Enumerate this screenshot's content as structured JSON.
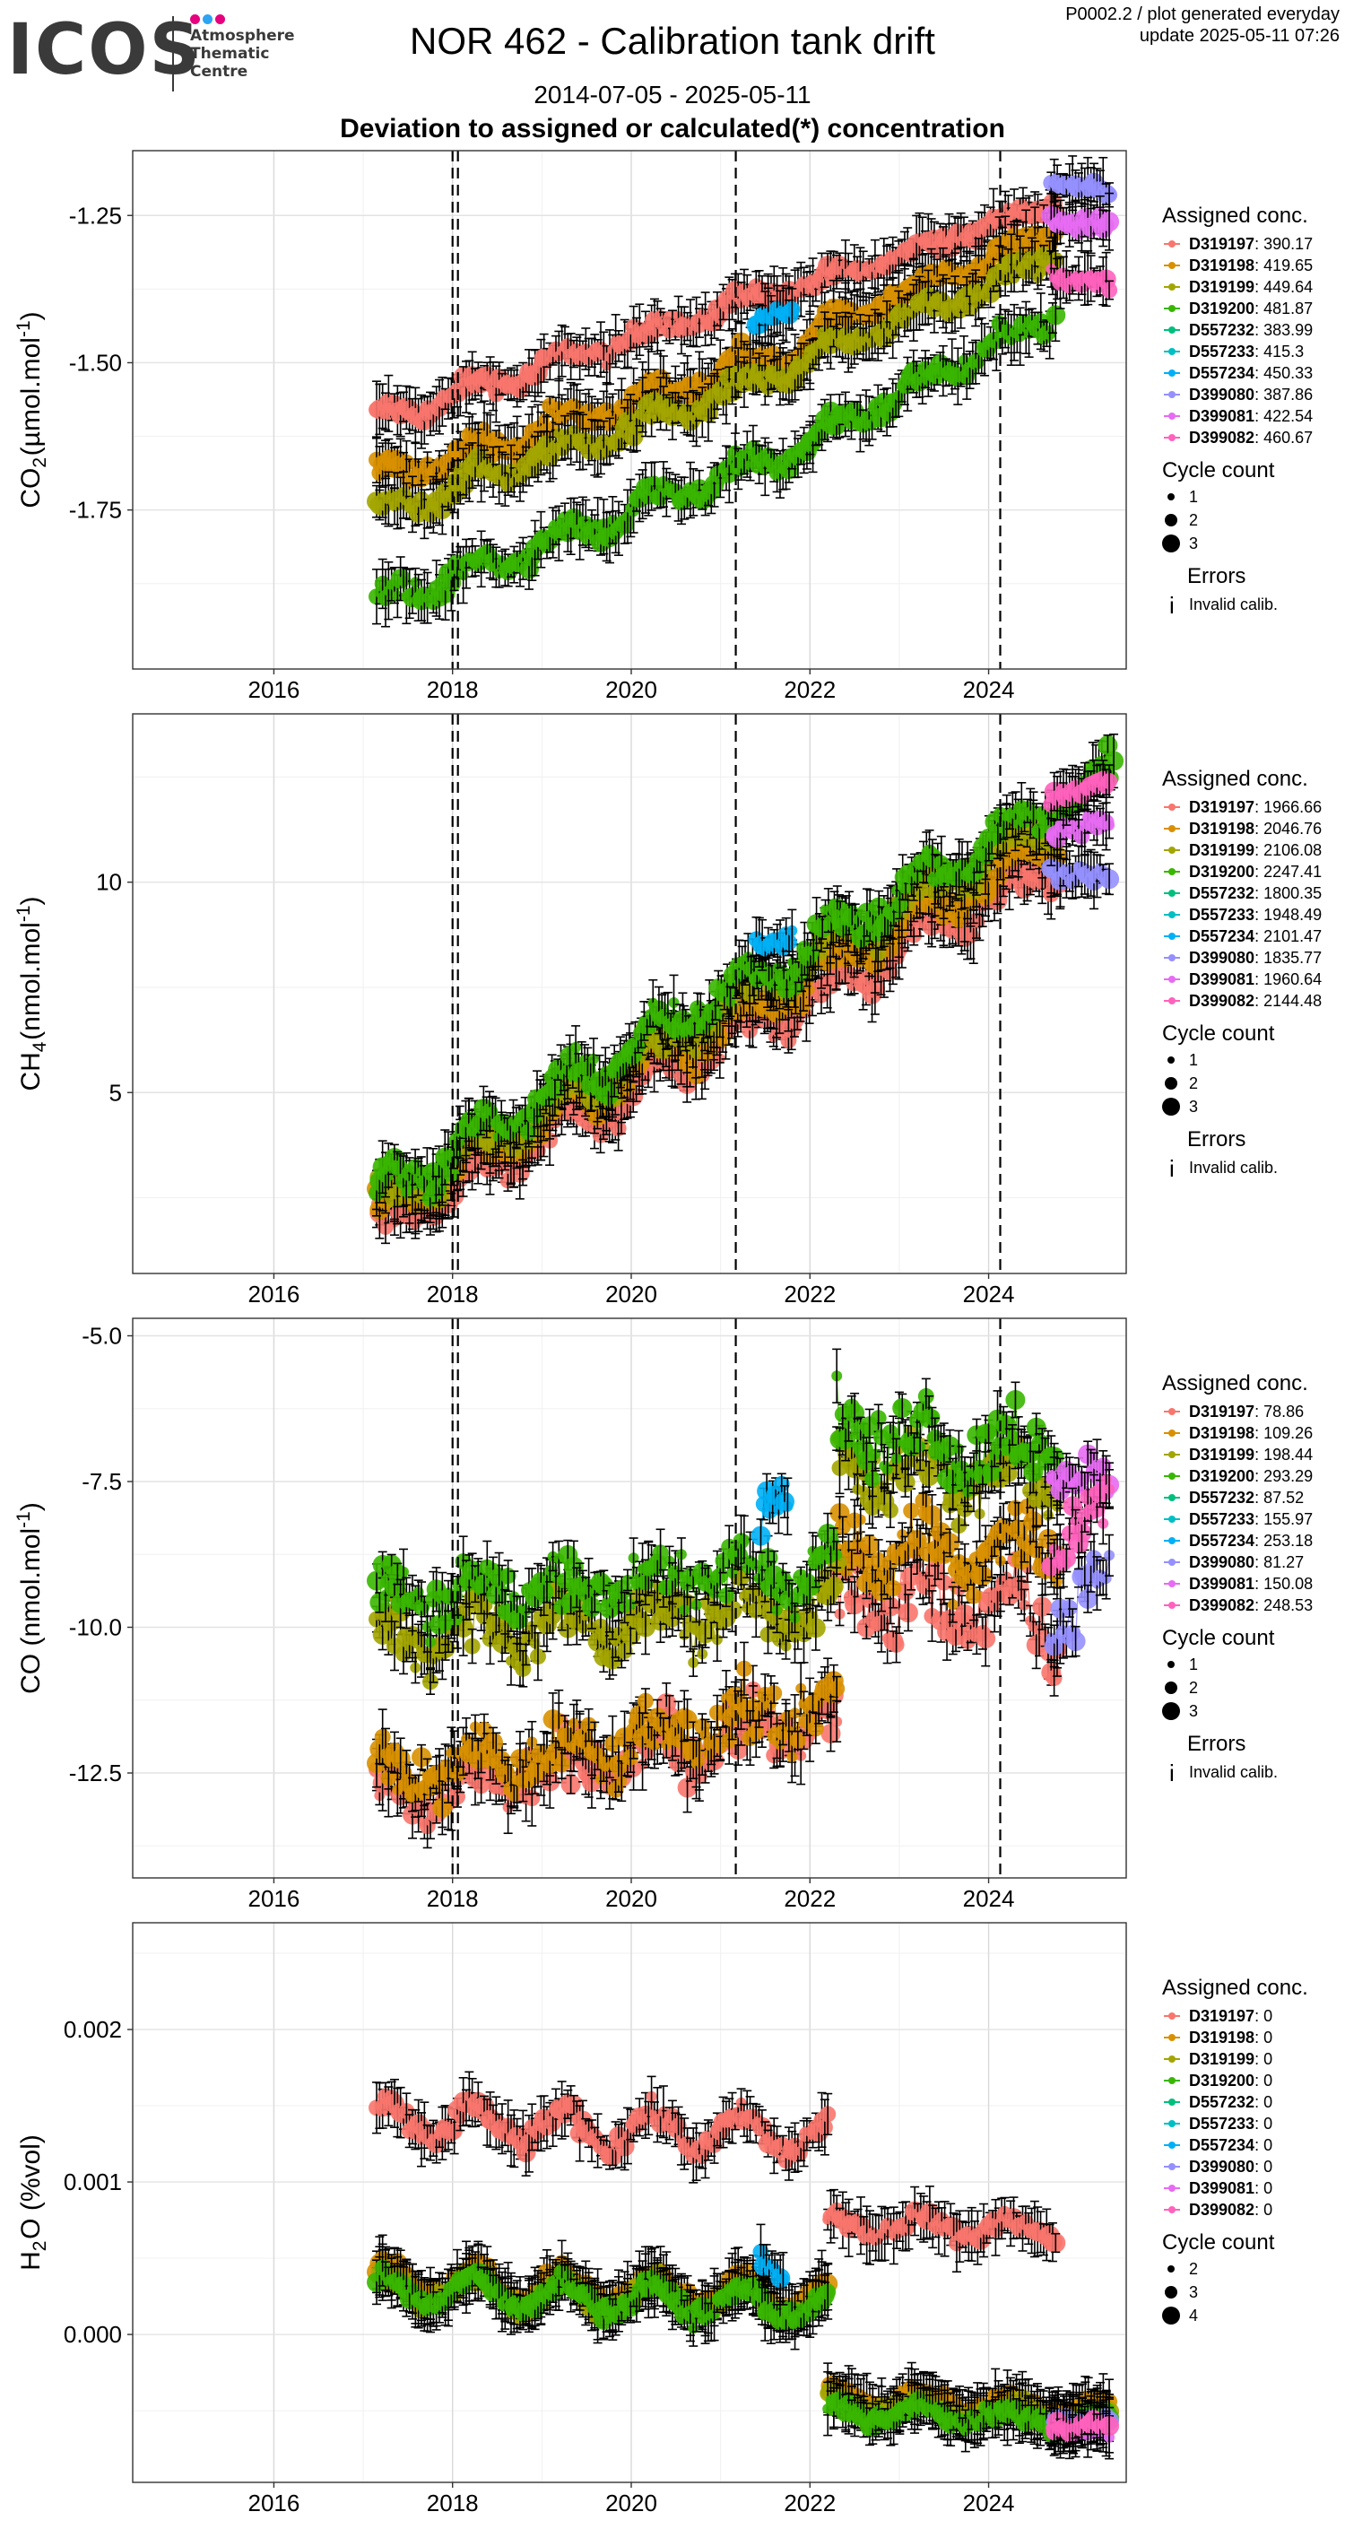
{
  "header": {
    "logo_word": "ICOS",
    "logo_lines": [
      "Atmosphere",
      "Thematic",
      "Centre"
    ],
    "logo_dot_colors": [
      "#e6007e",
      "#2ea3f2",
      "#e6007e"
    ],
    "title": "NOR 462 - Calibration tank drift",
    "date_range": "2014-07-05 - 2025-05-11",
    "heading": "Deviation to assigned or calculated(*) concentration",
    "meta_line1": "P0002.2 / plot generated everyday",
    "meta_line2": "update  2025-05-11 07:26"
  },
  "colors": {
    "D319197": "#F8766D",
    "D319198": "#D89000",
    "D319199": "#A3A500",
    "D319200": "#39B600",
    "D557232": "#00BF7D",
    "D557233": "#00BFC4",
    "D557234": "#00B0F6",
    "D399080": "#9590FF",
    "D399081": "#E76BF3",
    "D399082": "#FF62BC"
  },
  "chart_data": [
    {
      "type": "scatter",
      "gas": "CO2",
      "ylabel_main": "CO",
      "ylabel_sub": "2",
      "ylabel_unit_a": " (µmol.mol",
      "ylabel_sup": "-1",
      "ylabel_unit_b": ")",
      "xlim": [
        2014.42,
        2025.54
      ],
      "ylim": [
        -2.02,
        -1.14
      ],
      "x_ticks": [
        2016,
        2018,
        2020,
        2022,
        2024
      ],
      "x_tick_labels": [
        "2016",
        "2018",
        "2020",
        "2022",
        "2024"
      ],
      "y_ticks": [
        -1.75,
        -1.5,
        -1.25
      ],
      "y_tick_labels": [
        "-1.75",
        "-1.50",
        "-1.25"
      ],
      "vlines": [
        2018.0,
        2018.06,
        2021.17,
        2024.13
      ],
      "legend_title": "Assigned conc.",
      "legend": [
        {
          "tank": "D319197",
          "value": ": 390.17"
        },
        {
          "tank": "D319198",
          "value": ": 419.65"
        },
        {
          "tank": "D319199",
          "value": ": 449.64"
        },
        {
          "tank": "D319200",
          "value": ": 481.87"
        },
        {
          "tank": "D557232",
          "value": ": 383.99"
        },
        {
          "tank": "D557233",
          "value": ": 415.3"
        },
        {
          "tank": "D557234",
          "value": ": 450.33"
        },
        {
          "tank": "D399080",
          "value": ": 387.86"
        },
        {
          "tank": "D399081",
          "value": ": 422.54"
        },
        {
          "tank": "D399082",
          "value": ": 460.67"
        }
      ],
      "cycle_title": "Cycle count",
      "cycle_labels": [
        "1",
        "2",
        "3"
      ],
      "errors_title": "Errors",
      "errors_label": "Invalid calib.",
      "series": [
        {
          "tank": "D319197",
          "t0": 2017.15,
          "t1": 2022.0,
          "y0": -1.6,
          "y1": -1.36,
          "sd": 0.015,
          "amp": 0.015
        },
        {
          "tank": "D319197",
          "t0": 2022.0,
          "t1": 2024.75,
          "y0": -1.37,
          "y1": -1.23,
          "sd": 0.012,
          "amp": 0.01
        },
        {
          "tank": "D319198",
          "t0": 2017.15,
          "t1": 2022.0,
          "y0": -1.7,
          "y1": -1.47,
          "sd": 0.018,
          "amp": 0.02
        },
        {
          "tank": "D319198",
          "t0": 2022.0,
          "t1": 2024.75,
          "y0": -1.45,
          "y1": -1.28,
          "sd": 0.015,
          "amp": 0.012
        },
        {
          "tank": "D319199",
          "t0": 2017.15,
          "t1": 2022.0,
          "y0": -1.76,
          "y1": -1.5,
          "sd": 0.018,
          "amp": 0.015
        },
        {
          "tank": "D319199",
          "t0": 2022.0,
          "t1": 2024.75,
          "y0": -1.49,
          "y1": -1.32,
          "sd": 0.015,
          "amp": 0.012
        },
        {
          "tank": "D319200",
          "t0": 2017.15,
          "t1": 2022.0,
          "y0": -1.91,
          "y1": -1.64,
          "sd": 0.02,
          "amp": 0.02
        },
        {
          "tank": "D319200",
          "t0": 2022.0,
          "t1": 2024.75,
          "y0": -1.63,
          "y1": -1.42,
          "sd": 0.018,
          "amp": 0.015
        },
        {
          "tank": "D557234",
          "t0": 2021.4,
          "t1": 2021.8,
          "y0": -1.43,
          "y1": -1.4,
          "sd": 0.01,
          "amp": 0.005
        },
        {
          "tank": "D399080",
          "t0": 2024.7,
          "t1": 2025.35,
          "y0": -1.19,
          "y1": -1.21,
          "sd": 0.01,
          "amp": 0.005
        },
        {
          "tank": "D399081",
          "t0": 2024.7,
          "t1": 2025.35,
          "y0": -1.26,
          "y1": -1.27,
          "sd": 0.01,
          "amp": 0.005
        },
        {
          "tank": "D399082",
          "t0": 2024.7,
          "t1": 2025.35,
          "y0": -1.35,
          "y1": -1.37,
          "sd": 0.01,
          "amp": 0.005
        }
      ]
    },
    {
      "type": "scatter",
      "gas": "CH4",
      "ylabel_main": "CH",
      "ylabel_sub": "4",
      "ylabel_unit_a": " (nmol.mol",
      "ylabel_sup": "-1",
      "ylabel_unit_b": ")",
      "xlim": [
        2014.42,
        2025.54
      ],
      "ylim": [
        0.7,
        14.0
      ],
      "x_ticks": [
        2016,
        2018,
        2020,
        2022,
        2024
      ],
      "x_tick_labels": [
        "2016",
        "2018",
        "2020",
        "2022",
        "2024"
      ],
      "y_ticks": [
        5,
        10
      ],
      "y_tick_labels": [
        "5",
        "10"
      ],
      "vlines": [
        2018.0,
        2018.06,
        2021.17,
        2024.13
      ],
      "legend_title": "Assigned conc.",
      "legend": [
        {
          "tank": "D319197",
          "value": ": 1966.66"
        },
        {
          "tank": "D319198",
          "value": ": 2046.76"
        },
        {
          "tank": "D319199",
          "value": ": 2106.08"
        },
        {
          "tank": "D319200",
          "value": ": 2247.41"
        },
        {
          "tank": "D557232",
          "value": ": 1800.35"
        },
        {
          "tank": "D557233",
          "value": ": 1948.49"
        },
        {
          "tank": "D557234",
          "value": ": 2101.47"
        },
        {
          "tank": "D399080",
          "value": ": 1835.77"
        },
        {
          "tank": "D399081",
          "value": ": 1960.64"
        },
        {
          "tank": "D399082",
          "value": ": 2144.48"
        }
      ],
      "cycle_title": "Cycle count",
      "cycle_labels": [
        "1",
        "2",
        "3"
      ],
      "errors_title": "Errors",
      "errors_label": "Invalid calib.",
      "series": [
        {
          "tank": "D319197",
          "t0": 2017.15,
          "t1": 2024.8,
          "y0": 1.8,
          "y1": 10.5,
          "sd": 0.35,
          "amp": 0.4
        },
        {
          "tank": "D319198",
          "t0": 2017.15,
          "t1": 2024.8,
          "y0": 2.1,
          "y1": 11.0,
          "sd": 0.35,
          "amp": 0.4
        },
        {
          "tank": "D319199",
          "t0": 2017.15,
          "t1": 2024.8,
          "y0": 2.3,
          "y1": 11.6,
          "sd": 0.35,
          "amp": 0.4
        },
        {
          "tank": "D319200",
          "t0": 2017.15,
          "t1": 2025.4,
          "y0": 2.6,
          "y1": 12.6,
          "sd": 0.35,
          "amp": 0.4
        },
        {
          "tank": "D557234",
          "t0": 2021.4,
          "t1": 2021.8,
          "y0": 8.4,
          "y1": 8.8,
          "sd": 0.2,
          "amp": 0.1
        },
        {
          "tank": "D399080",
          "t0": 2024.7,
          "t1": 2025.35,
          "y0": 10.4,
          "y1": 10.0,
          "sd": 0.2,
          "amp": 0.1
        },
        {
          "tank": "D399081",
          "t0": 2024.7,
          "t1": 2025.35,
          "y0": 11.2,
          "y1": 11.4,
          "sd": 0.2,
          "amp": 0.1
        },
        {
          "tank": "D399082",
          "t0": 2024.7,
          "t1": 2025.35,
          "y0": 12.1,
          "y1": 12.3,
          "sd": 0.2,
          "amp": 0.1
        }
      ]
    },
    {
      "type": "scatter",
      "gas": "CO",
      "ylabel_main": "CO",
      "ylabel_sub": "",
      "ylabel_unit_a": " (nmol.mol",
      "ylabel_sup": "-1",
      "ylabel_unit_b": ")",
      "xlim": [
        2014.42,
        2025.54
      ],
      "ylim": [
        -14.3,
        -4.7
      ],
      "x_ticks": [
        2016,
        2018,
        2020,
        2022,
        2024
      ],
      "x_tick_labels": [
        "2016",
        "2018",
        "2020",
        "2022",
        "2024"
      ],
      "y_ticks": [
        -12.5,
        -10.0,
        -7.5,
        -5.0
      ],
      "y_tick_labels": [
        "-12.5",
        "-10.0",
        "-7.5",
        "-5.0"
      ],
      "vlines": [
        2018.0,
        2018.06,
        2021.17,
        2024.13
      ],
      "legend_title": "Assigned conc.",
      "legend": [
        {
          "tank": "D319197",
          "value": ": 78.86"
        },
        {
          "tank": "D319198",
          "value": ": 109.26"
        },
        {
          "tank": "D319199",
          "value": ": 198.44"
        },
        {
          "tank": "D319200",
          "value": ": 293.29"
        },
        {
          "tank": "D557232",
          "value": ": 87.52"
        },
        {
          "tank": "D557233",
          "value": ": 155.97"
        },
        {
          "tank": "D557234",
          "value": ": 253.18"
        },
        {
          "tank": "D399080",
          "value": ": 81.27"
        },
        {
          "tank": "D399081",
          "value": ": 150.08"
        },
        {
          "tank": "D399082",
          "value": ": 248.53"
        }
      ],
      "cycle_title": "Cycle count",
      "cycle_labels": [
        "1",
        "2",
        "3"
      ],
      "errors_title": "Errors",
      "errors_label": "Invalid calib.",
      "series": [
        {
          "tank": "D319197",
          "t0": 2017.15,
          "t1": 2022.3,
          "y0": -12.9,
          "y1": -11.6,
          "sd": 0.45,
          "amp": 0.3
        },
        {
          "tank": "D319197",
          "t0": 2022.3,
          "t1": 2024.8,
          "y0": -9.4,
          "y1": -9.8,
          "sd": 0.6,
          "amp": 0.4
        },
        {
          "tank": "D319198",
          "t0": 2017.15,
          "t1": 2022.3,
          "y0": -12.6,
          "y1": -11.4,
          "sd": 0.45,
          "amp": 0.3
        },
        {
          "tank": "D319198",
          "t0": 2022.3,
          "t1": 2024.8,
          "y0": -8.8,
          "y1": -8.6,
          "sd": 0.6,
          "amp": 0.4
        },
        {
          "tank": "D319199",
          "t0": 2017.15,
          "t1": 2022.3,
          "y0": -10.2,
          "y1": -9.6,
          "sd": 0.45,
          "amp": 0.3
        },
        {
          "tank": "D319199",
          "t0": 2022.3,
          "t1": 2024.8,
          "y0": -7.2,
          "y1": -7.4,
          "sd": 0.6,
          "amp": 0.4
        },
        {
          "tank": "D319200",
          "t0": 2017.15,
          "t1": 2022.3,
          "y0": -9.5,
          "y1": -9.0,
          "sd": 0.45,
          "amp": 0.3
        },
        {
          "tank": "D319200",
          "t0": 2022.3,
          "t1": 2024.8,
          "y0": -6.6,
          "y1": -7.0,
          "sd": 0.6,
          "amp": 0.4
        },
        {
          "tank": "D557234",
          "t0": 2021.45,
          "t1": 2021.75,
          "y0": -8.2,
          "y1": -7.0,
          "sd": 0.5,
          "amp": 0.3
        },
        {
          "tank": "D399080",
          "t0": 2024.7,
          "t1": 2025.35,
          "y0": -9.8,
          "y1": -9.2,
          "sd": 0.5,
          "amp": 0.3
        },
        {
          "tank": "D399081",
          "t0": 2024.7,
          "t1": 2025.35,
          "y0": -7.2,
          "y1": -7.8,
          "sd": 0.5,
          "amp": 0.3
        },
        {
          "tank": "D399082",
          "t0": 2024.7,
          "t1": 2025.35,
          "y0": -8.6,
          "y1": -8.2,
          "sd": 0.5,
          "amp": 0.3
        }
      ]
    },
    {
      "type": "scatter",
      "gas": "H2O",
      "ylabel_main": "H",
      "ylabel_sub": "2",
      "ylabel_unit_a": "O (%vol)",
      "ylabel_sup": "",
      "ylabel_unit_b": "",
      "xlim": [
        2014.42,
        2025.54
      ],
      "ylim": [
        -0.00097,
        0.0027
      ],
      "x_ticks": [
        2016,
        2018,
        2020,
        2022,
        2024
      ],
      "x_tick_labels": [
        "2016",
        "2018",
        "2020",
        "2022",
        "2024"
      ],
      "y_ticks": [
        0.0,
        0.001,
        0.002
      ],
      "y_tick_labels": [
        "0.000",
        "0.001",
        "0.002"
      ],
      "vlines": [],
      "legend_title": "Assigned conc.",
      "legend": [
        {
          "tank": "D319197",
          "value": ": 0"
        },
        {
          "tank": "D319198",
          "value": ": 0"
        },
        {
          "tank": "D319199",
          "value": ": 0"
        },
        {
          "tank": "D319200",
          "value": ": 0"
        },
        {
          "tank": "D557232",
          "value": ": 0"
        },
        {
          "tank": "D557233",
          "value": ": 0"
        },
        {
          "tank": "D557234",
          "value": ": 0"
        },
        {
          "tank": "D399080",
          "value": ": 0"
        },
        {
          "tank": "D399081",
          "value": ": 0"
        },
        {
          "tank": "D399082",
          "value": ": 0"
        }
      ],
      "cycle_title": "Cycle count",
      "cycle_labels": [
        "2",
        "3",
        "4"
      ],
      "errors_title": "",
      "errors_label": "",
      "series": [
        {
          "tank": "D319197",
          "t0": 2017.15,
          "t1": 2022.2,
          "y0": 0.0014,
          "y1": 0.0013,
          "sd": 7e-05,
          "amp": 0.00012
        },
        {
          "tank": "D319197",
          "t0": 2022.2,
          "t1": 2024.75,
          "y0": 0.00073,
          "y1": 0.00068,
          "sd": 5e-05,
          "amp": 6e-05
        },
        {
          "tank": "D319198",
          "t0": 2017.15,
          "t1": 2022.2,
          "y0": 0.00035,
          "y1": 0.00025,
          "sd": 6e-05,
          "amp": 0.0001
        },
        {
          "tank": "D319198",
          "t0": 2022.2,
          "t1": 2025.35,
          "y0": -0.0004,
          "y1": -0.0005,
          "sd": 5e-05,
          "amp": 5e-05
        },
        {
          "tank": "D319199",
          "t0": 2017.15,
          "t1": 2022.2,
          "y0": 0.0003,
          "y1": 0.0002,
          "sd": 6e-05,
          "amp": 0.0001
        },
        {
          "tank": "D319199",
          "t0": 2022.2,
          "t1": 2025.35,
          "y0": -0.00045,
          "y1": -0.00055,
          "sd": 5e-05,
          "amp": 5e-05
        },
        {
          "tank": "D319200",
          "t0": 2017.15,
          "t1": 2022.2,
          "y0": 0.0003,
          "y1": 0.00018,
          "sd": 6e-05,
          "amp": 0.0001
        },
        {
          "tank": "D319200",
          "t0": 2022.2,
          "t1": 2025.35,
          "y0": -0.0005,
          "y1": -0.00058,
          "sd": 5e-05,
          "amp": 5e-05
        },
        {
          "tank": "D557234",
          "t0": 2021.45,
          "t1": 2021.7,
          "y0": 0.0005,
          "y1": 0.0004,
          "sd": 5e-05,
          "amp": 3e-05
        },
        {
          "tank": "D399080",
          "t0": 2024.7,
          "t1": 2025.35,
          "y0": -0.00055,
          "y1": -0.0006,
          "sd": 4e-05,
          "amp": 2e-05
        },
        {
          "tank": "D399081",
          "t0": 2024.7,
          "t1": 2025.35,
          "y0": -0.0006,
          "y1": -0.00065,
          "sd": 4e-05,
          "amp": 2e-05
        },
        {
          "tank": "D399082",
          "t0": 2024.7,
          "t1": 2025.35,
          "y0": -0.00058,
          "y1": -0.00062,
          "sd": 4e-05,
          "amp": 2e-05
        }
      ]
    }
  ]
}
